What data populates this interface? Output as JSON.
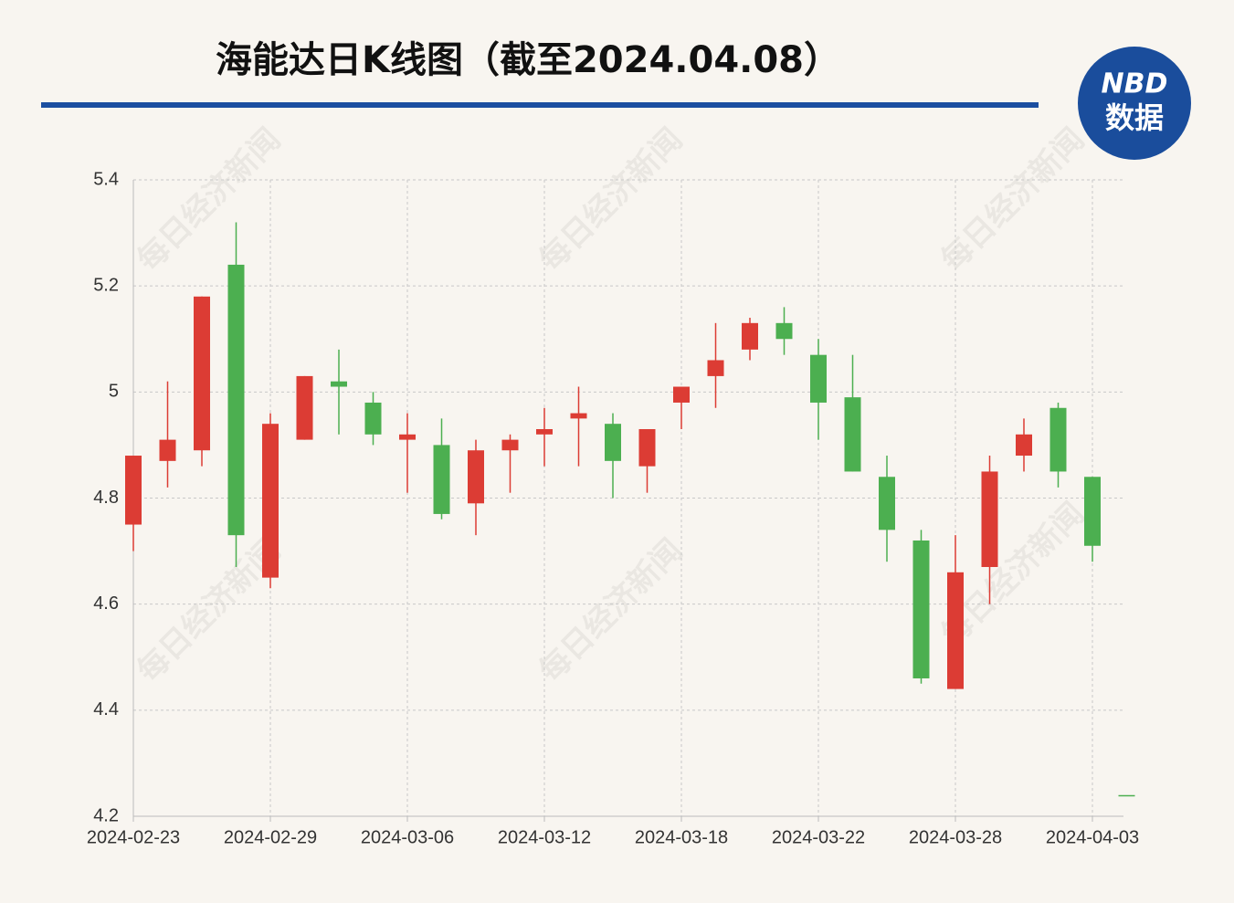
{
  "chart_data": {
    "type": "candlestick",
    "title": "海能达日K线图（截至2024.04.08）",
    "watermark": "每日经济新闻",
    "logo": {
      "top": "NBD",
      "bottom": "数据"
    },
    "categories": [
      "2024-02-23",
      null,
      null,
      null,
      "2024-02-29",
      null,
      null,
      null,
      "2024-03-06",
      null,
      null,
      null,
      "2024-03-12",
      null,
      null,
      null,
      "2024-03-18",
      null,
      null,
      null,
      "2024-03-22",
      null,
      null,
      null,
      "2024-03-28",
      null,
      null,
      null,
      "2024-04-03",
      null
    ],
    "open": [
      4.75,
      4.87,
      4.89,
      5.24,
      4.65,
      4.91,
      5.02,
      4.98,
      4.91,
      4.9,
      4.79,
      4.89,
      4.92,
      4.95,
      4.94,
      4.86,
      4.98,
      5.03,
      5.08,
      5.13,
      5.07,
      4.99,
      4.84,
      4.72,
      4.44,
      4.67,
      4.88,
      4.97,
      4.84,
      4.24
    ],
    "high": [
      4.88,
      5.02,
      5.18,
      5.32,
      4.96,
      5.03,
      5.08,
      5.0,
      4.96,
      4.95,
      4.91,
      4.92,
      4.97,
      5.01,
      4.96,
      4.93,
      5.01,
      5.13,
      5.14,
      5.16,
      5.1,
      5.07,
      4.88,
      4.74,
      4.73,
      4.88,
      4.95,
      4.98,
      4.84,
      4.24
    ],
    "low": [
      4.7,
      4.82,
      4.86,
      4.67,
      4.63,
      4.91,
      4.92,
      4.9,
      4.81,
      4.76,
      4.73,
      4.81,
      4.86,
      4.86,
      4.8,
      4.81,
      4.93,
      4.97,
      5.06,
      5.07,
      4.91,
      4.85,
      4.68,
      4.45,
      4.44,
      4.6,
      4.85,
      4.82,
      4.68,
      4.24
    ],
    "close": [
      4.88,
      4.91,
      5.18,
      4.73,
      4.94,
      5.03,
      5.01,
      4.92,
      4.92,
      4.77,
      4.89,
      4.91,
      4.93,
      4.96,
      4.87,
      4.93,
      5.01,
      5.06,
      5.13,
      5.1,
      4.98,
      4.85,
      4.74,
      4.46,
      4.66,
      4.85,
      4.92,
      4.85,
      4.71,
      4.24
    ],
    "up_color": "#dc3c34",
    "down_color": "#4caf50",
    "ylim": [
      4.2,
      5.4
    ],
    "yticks": [
      4.2,
      4.4,
      4.6,
      4.8,
      5,
      5.2,
      5.4
    ],
    "grid": true
  }
}
